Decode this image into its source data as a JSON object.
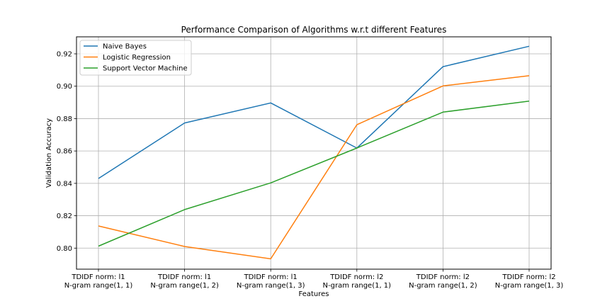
{
  "chart_data": {
    "type": "line",
    "title": "Performance Comparison of Algorithms w.r.t different Features",
    "xlabel": "Features",
    "ylabel": "Validation Accuracy",
    "categories": [
      [
        "TDIDF norm: l1",
        "N-gram range(1, 1)"
      ],
      [
        "TDIDF norm: l1",
        "N-gram range(1, 2)"
      ],
      [
        "TDIDF norm: l1",
        "N-gram range(1, 3)"
      ],
      [
        "TDIDF norm: l2",
        "N-gram range(1, 1)"
      ],
      [
        "TDIDF norm: l2",
        "N-gram range(1, 2)"
      ],
      [
        "TDIDF norm: l2",
        "N-gram range(1, 3)"
      ]
    ],
    "yticks": [
      "0.80",
      "0.82",
      "0.84",
      "0.86",
      "0.88",
      "0.90",
      "0.92"
    ],
    "ylim": [
      0.787,
      0.9305
    ],
    "grid": true,
    "legend_position": "top-left",
    "series": [
      {
        "name": "Naive Bayes",
        "color": "#1f77b4",
        "values": [
          0.843,
          0.8773,
          0.8897,
          0.8618,
          0.9121,
          0.9247
        ]
      },
      {
        "name": "Logistic Regression",
        "color": "#ff7f0e",
        "values": [
          0.8137,
          0.801,
          0.7934,
          0.8762,
          0.9002,
          0.9065
        ]
      },
      {
        "name": "Support Vector Machine",
        "color": "#2ca02c",
        "values": [
          0.8012,
          0.8238,
          0.8403,
          0.8618,
          0.884,
          0.8908
        ]
      }
    ]
  }
}
